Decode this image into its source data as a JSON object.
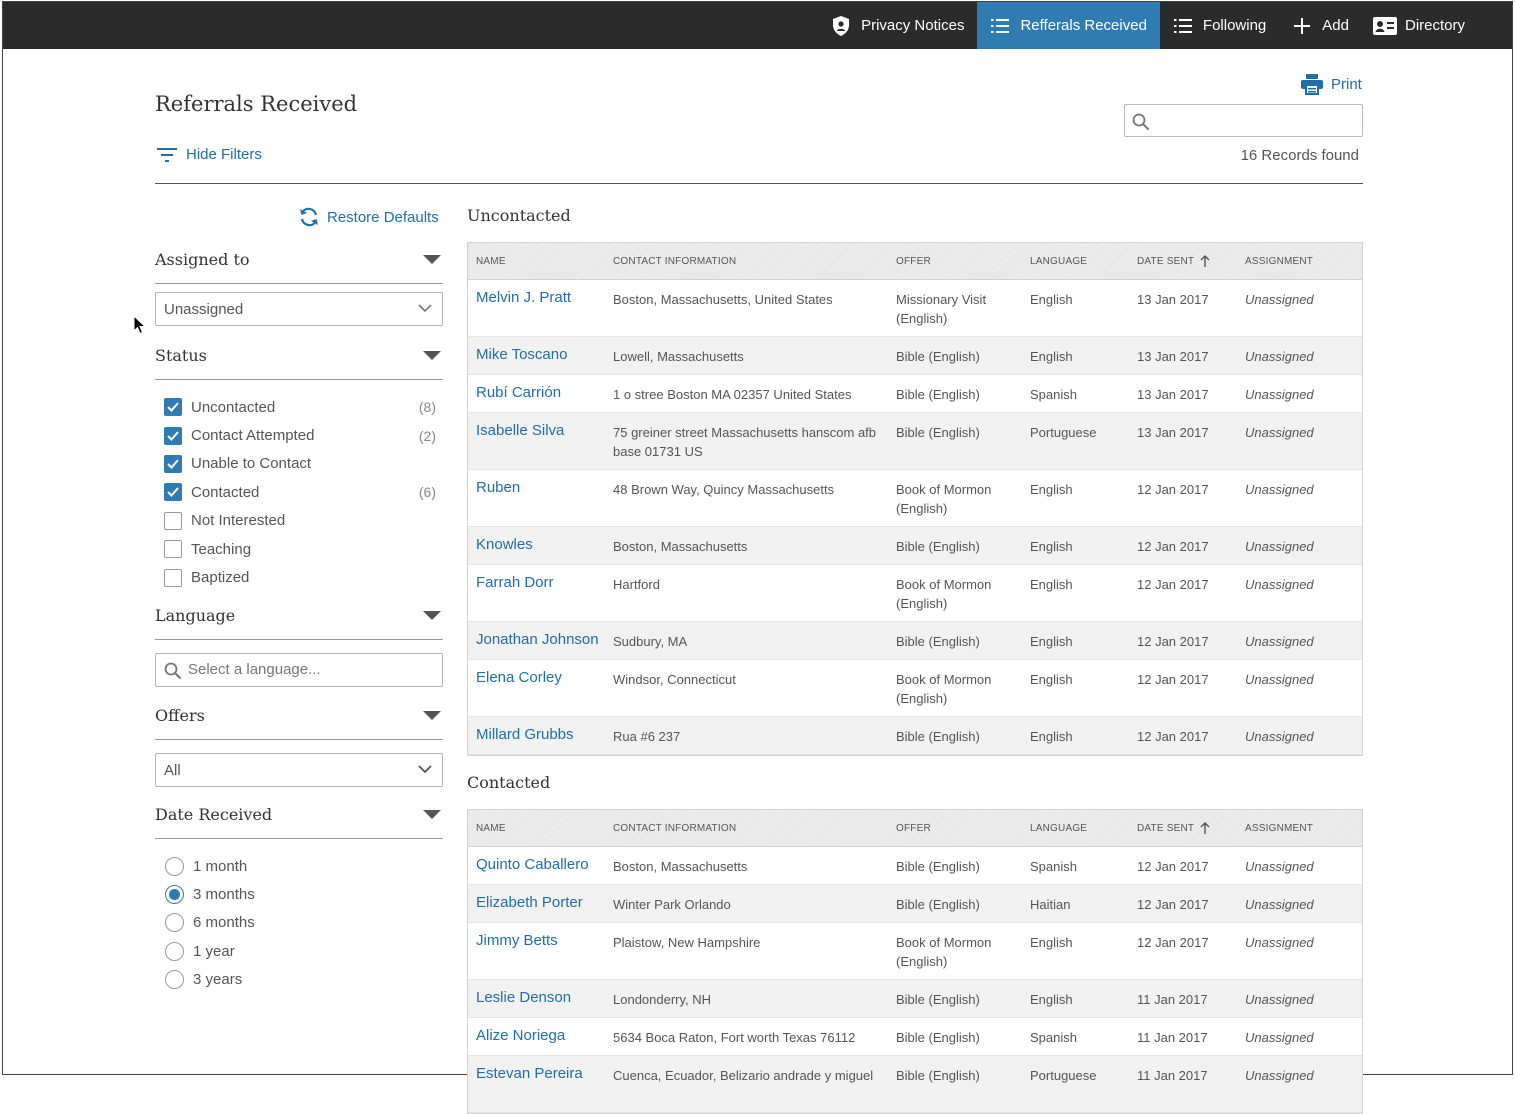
{
  "nav": {
    "items": [
      {
        "label": "Privacy Notices",
        "icon": "shield-icon"
      },
      {
        "label": "Refferals Received",
        "icon": "list-icon",
        "active": true
      },
      {
        "label": "Following",
        "icon": "list-icon"
      },
      {
        "label": "Add",
        "icon": "plus-icon"
      },
      {
        "label": "Directory",
        "icon": "id-card-icon"
      }
    ]
  },
  "header": {
    "title": "Referrals Received",
    "hide_filters_label": "Hide Filters",
    "print_label": "Print",
    "search_placeholder": "",
    "records_found": "16 Records found"
  },
  "filters": {
    "restore_label": "Restore Defaults",
    "assigned": {
      "heading": "Assigned to",
      "value": "Unassigned"
    },
    "status": {
      "heading": "Status",
      "options": [
        {
          "label": "Uncontacted",
          "checked": true,
          "count": "(8)"
        },
        {
          "label": "Contact Attempted",
          "checked": true,
          "count": "(2)"
        },
        {
          "label": "Unable to Contact",
          "checked": true,
          "count": ""
        },
        {
          "label": "Contacted",
          "checked": true,
          "count": "(6)"
        },
        {
          "label": "Not Interested",
          "checked": false,
          "count": ""
        },
        {
          "label": "Teaching",
          "checked": false,
          "count": ""
        },
        {
          "label": "Baptized",
          "checked": false,
          "count": ""
        }
      ]
    },
    "language": {
      "heading": "Language",
      "placeholder": "Select a language..."
    },
    "offers": {
      "heading": "Offers",
      "value": "All"
    },
    "date_received": {
      "heading": "Date Received",
      "options": [
        {
          "label": "1 month",
          "selected": false
        },
        {
          "label": "3 months",
          "selected": true
        },
        {
          "label": "6 months",
          "selected": false
        },
        {
          "label": "1 year",
          "selected": false
        },
        {
          "label": "3 years",
          "selected": false
        }
      ]
    }
  },
  "columns": [
    "NAME",
    "CONTACT INFORMATION",
    "OFFER",
    "LANGUAGE",
    "DATE SENT",
    "ASSIGNMENT"
  ],
  "uncontacted": {
    "title": "Uncontacted",
    "rows": [
      {
        "name": "Melvin J. Pratt",
        "contact": "Boston, Massachusetts, United States",
        "offer": "Missionary Visit (English)",
        "language": "English",
        "date": "13 Jan 2017",
        "assignment": "Unassigned"
      },
      {
        "name": "Mike Toscano",
        "contact": "Lowell, Massachusetts",
        "offer": "Bible (English)",
        "language": "English",
        "date": "13 Jan 2017",
        "assignment": "Unassigned"
      },
      {
        "name": "Rubí Carrión",
        "contact": "1 o stree Boston MA 02357 United States",
        "offer": "Bible (English)",
        "language": "Spanish",
        "date": "13 Jan 2017",
        "assignment": "Unassigned"
      },
      {
        "name": "Isabelle Silva",
        "contact": "75 greiner street Massachusetts hanscom afb base 01731 US",
        "offer": "Bible (English)",
        "language": "Portuguese",
        "date": "13 Jan 2017",
        "assignment": "Unassigned"
      },
      {
        "name": "Ruben",
        "contact": "48 Brown Way, Quincy Massachusetts",
        "offer": "Book of Mormon (English)",
        "language": "English",
        "date": "12 Jan 2017",
        "assignment": "Unassigned"
      },
      {
        "name": "Knowles",
        "contact": "Boston, Massachusetts",
        "offer": "Bible (English)",
        "language": "English",
        "date": "12 Jan 2017",
        "assignment": "Unassigned"
      },
      {
        "name": "Farrah Dorr",
        "contact": "Hartford",
        "offer": "Book of Mormon (English)",
        "language": "English",
        "date": "12 Jan 2017",
        "assignment": "Unassigned"
      },
      {
        "name": "Jonathan Johnson",
        "contact": "Sudbury, MA",
        "offer": "Bible (English)",
        "language": "English",
        "date": "12 Jan 2017",
        "assignment": "Unassigned"
      },
      {
        "name": "Elena Corley",
        "contact": "Windsor, Connecticut",
        "offer": "Book of Mormon (English)",
        "language": "English",
        "date": "12 Jan 2017",
        "assignment": "Unassigned"
      },
      {
        "name": "Millard Grubbs",
        "contact": "Rua #6 237",
        "offer": "Bible (English)",
        "language": "English",
        "date": "12 Jan 2017",
        "assignment": "Unassigned"
      }
    ]
  },
  "contacted": {
    "title": "Contacted",
    "rows": [
      {
        "name": "Quinto Caballero",
        "contact": "Boston, Massachusetts",
        "offer": "Bible (English)",
        "language": "Spanish",
        "date": "12 Jan 2017",
        "assignment": "Unassigned"
      },
      {
        "name": "Elizabeth Porter",
        "contact": "Winter Park Orlando",
        "offer": "Bible (English)",
        "language": "Haitian",
        "date": "12 Jan 2017",
        "assignment": "Unassigned"
      },
      {
        "name": "Jimmy Betts",
        "contact": "Plaistow, New Hampshire",
        "offer": "Book of Mormon (English)",
        "language": "English",
        "date": "12 Jan 2017",
        "assignment": "Unassigned"
      },
      {
        "name": "Leslie Denson",
        "contact": "Londonderry, NH",
        "offer": "Bible (English)",
        "language": "English",
        "date": "11 Jan 2017",
        "assignment": "Unassigned"
      },
      {
        "name": "Alize Noriega",
        "contact": "5634 Boca Raton, Fort worth Texas 76112",
        "offer": "Bible (English)",
        "language": "Spanish",
        "date": "11 Jan 2017",
        "assignment": "Unassigned"
      },
      {
        "name": "Estevan Pereira",
        "contact": "Cuenca, Ecuador, Belizario andrade y miguel",
        "offer": "Bible (English)",
        "language": "Portuguese",
        "date": "11 Jan 2017",
        "assignment": "Unassigned"
      }
    ]
  }
}
